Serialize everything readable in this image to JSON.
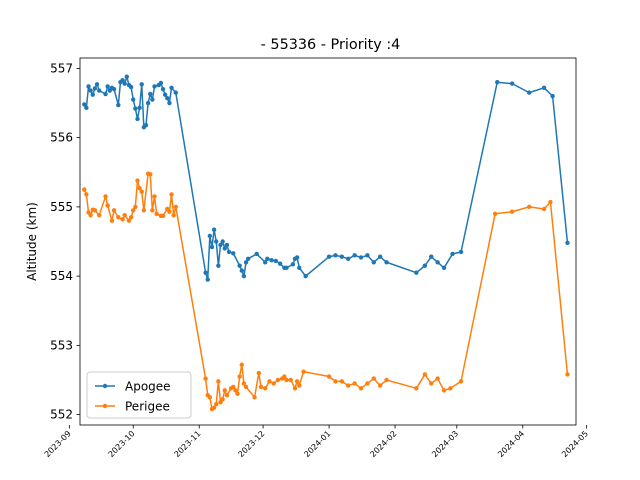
{
  "chart_data": {
    "type": "line",
    "title": "- 55336 - Priority :4",
    "xlabel": "",
    "ylabel": "Altitude (km)",
    "ylim": [
      551.85,
      557.15
    ],
    "xlim": [
      "2023-09-01",
      "2024-05-01"
    ],
    "grid": false,
    "legend_position": "lower-left",
    "x_ticks": [
      "2023-09",
      "2023-10",
      "2023-11",
      "2023-12",
      "2024-01",
      "2024-02",
      "2024-03",
      "2024-04",
      "2024-05"
    ],
    "y_ticks": [
      552,
      553,
      554,
      555,
      556,
      557
    ],
    "series": [
      {
        "name": "Apogee",
        "color": "#1f77b4",
        "points": [
          [
            "2023-09-08",
            556.48
          ],
          [
            "2023-09-09",
            556.43
          ],
          [
            "2023-09-10",
            556.74
          ],
          [
            "2023-09-11",
            556.68
          ],
          [
            "2023-09-12",
            556.62
          ],
          [
            "2023-09-13",
            556.71
          ],
          [
            "2023-09-14",
            556.77
          ],
          [
            "2023-09-15",
            556.68
          ],
          [
            "2023-09-18",
            556.63
          ],
          [
            "2023-09-19",
            556.74
          ],
          [
            "2023-09-20",
            556.68
          ],
          [
            "2023-09-21",
            556.72
          ],
          [
            "2023-09-22",
            556.7
          ],
          [
            "2023-09-24",
            556.47
          ],
          [
            "2023-09-25",
            556.8
          ],
          [
            "2023-09-26",
            556.83
          ],
          [
            "2023-09-27",
            556.78
          ],
          [
            "2023-09-28",
            556.88
          ],
          [
            "2023-09-29",
            556.76
          ],
          [
            "2023-09-30",
            556.73
          ],
          [
            "2023-10-01",
            556.55
          ],
          [
            "2023-10-02",
            556.42
          ],
          [
            "2023-10-03",
            556.27
          ],
          [
            "2023-10-04",
            556.43
          ],
          [
            "2023-10-05",
            556.77
          ],
          [
            "2023-10-06",
            556.15
          ],
          [
            "2023-10-07",
            556.18
          ],
          [
            "2023-10-08",
            556.5
          ],
          [
            "2023-10-09",
            556.63
          ],
          [
            "2023-10-10",
            556.55
          ],
          [
            "2023-10-11",
            556.74
          ],
          [
            "2023-10-13",
            556.76
          ],
          [
            "2023-10-14",
            556.79
          ],
          [
            "2023-10-15",
            556.7
          ],
          [
            "2023-10-16",
            556.62
          ],
          [
            "2023-10-17",
            556.57
          ],
          [
            "2023-10-18",
            556.5
          ],
          [
            "2023-10-19",
            556.72
          ],
          [
            "2023-10-21",
            556.65
          ],
          [
            "2023-11-04",
            554.05
          ],
          [
            "2023-11-05",
            553.95
          ],
          [
            "2023-11-06",
            554.58
          ],
          [
            "2023-11-07",
            554.42
          ],
          [
            "2023-11-08",
            554.67
          ],
          [
            "2023-11-09",
            554.5
          ],
          [
            "2023-11-10",
            554.15
          ],
          [
            "2023-11-11",
            554.45
          ],
          [
            "2023-11-12",
            554.5
          ],
          [
            "2023-11-13",
            554.4
          ],
          [
            "2023-11-14",
            554.45
          ],
          [
            "2023-11-15",
            554.35
          ],
          [
            "2023-11-17",
            554.33
          ],
          [
            "2023-11-20",
            554.15
          ],
          [
            "2023-11-21",
            554.08
          ],
          [
            "2023-11-22",
            554.0
          ],
          [
            "2023-11-23",
            554.2
          ],
          [
            "2023-11-24",
            554.25
          ],
          [
            "2023-11-28",
            554.32
          ],
          [
            "2023-12-02",
            554.2
          ],
          [
            "2023-12-03",
            554.25
          ],
          [
            "2023-12-05",
            554.23
          ],
          [
            "2023-12-07",
            554.22
          ],
          [
            "2023-12-09",
            554.18
          ],
          [
            "2023-12-11",
            554.12
          ],
          [
            "2023-12-12",
            554.12
          ],
          [
            "2023-12-15",
            554.17
          ],
          [
            "2023-12-16",
            554.25
          ],
          [
            "2023-12-17",
            554.27
          ],
          [
            "2023-12-18",
            554.12
          ],
          [
            "2023-12-21",
            554.0
          ],
          [
            "2024-01-01",
            554.28
          ],
          [
            "2024-01-04",
            554.3
          ],
          [
            "2024-01-07",
            554.28
          ],
          [
            "2024-01-10",
            554.25
          ],
          [
            "2024-01-13",
            554.3
          ],
          [
            "2024-01-16",
            554.27
          ],
          [
            "2024-01-19",
            554.3
          ],
          [
            "2024-01-22",
            554.2
          ],
          [
            "2024-01-25",
            554.28
          ],
          [
            "2024-01-28",
            554.2
          ],
          [
            "2024-02-11",
            554.05
          ],
          [
            "2024-02-15",
            554.15
          ],
          [
            "2024-02-18",
            554.28
          ],
          [
            "2024-02-21",
            554.2
          ],
          [
            "2024-02-24",
            554.12
          ],
          [
            "2024-02-28",
            554.32
          ],
          [
            "2024-03-03",
            554.35
          ],
          [
            "2024-03-20",
            556.8
          ],
          [
            "2024-03-27",
            556.78
          ],
          [
            "2024-04-04",
            556.65
          ],
          [
            "2024-04-11",
            556.72
          ],
          [
            "2024-04-15",
            556.6
          ],
          [
            "2024-04-22",
            554.48
          ]
        ]
      },
      {
        "name": "Perigee",
        "color": "#ff7f0e",
        "points": [
          [
            "2023-09-08",
            555.25
          ],
          [
            "2023-09-09",
            555.18
          ],
          [
            "2023-09-10",
            554.92
          ],
          [
            "2023-09-11",
            554.88
          ],
          [
            "2023-09-12",
            554.96
          ],
          [
            "2023-09-13",
            554.95
          ],
          [
            "2023-09-15",
            554.88
          ],
          [
            "2023-09-18",
            555.15
          ],
          [
            "2023-09-19",
            555.02
          ],
          [
            "2023-09-21",
            554.8
          ],
          [
            "2023-09-22",
            554.95
          ],
          [
            "2023-09-24",
            554.85
          ],
          [
            "2023-09-26",
            554.82
          ],
          [
            "2023-09-27",
            554.88
          ],
          [
            "2023-09-29",
            554.8
          ],
          [
            "2023-09-30",
            554.85
          ],
          [
            "2023-10-01",
            554.95
          ],
          [
            "2023-10-02",
            555.0
          ],
          [
            "2023-10-03",
            555.38
          ],
          [
            "2023-10-04",
            555.27
          ],
          [
            "2023-10-05",
            555.22
          ],
          [
            "2023-10-06",
            554.95
          ],
          [
            "2023-10-08",
            555.48
          ],
          [
            "2023-10-09",
            555.47
          ],
          [
            "2023-10-10",
            554.95
          ],
          [
            "2023-10-11",
            555.15
          ],
          [
            "2023-10-12",
            554.9
          ],
          [
            "2023-10-14",
            554.87
          ],
          [
            "2023-10-15",
            554.87
          ],
          [
            "2023-10-17",
            554.97
          ],
          [
            "2023-10-18",
            554.93
          ],
          [
            "2023-10-19",
            555.18
          ],
          [
            "2023-10-20",
            554.88
          ],
          [
            "2023-10-21",
            555.0
          ],
          [
            "2023-11-04",
            552.52
          ],
          [
            "2023-11-05",
            552.28
          ],
          [
            "2023-11-06",
            552.25
          ],
          [
            "2023-11-07",
            552.08
          ],
          [
            "2023-11-08",
            552.1
          ],
          [
            "2023-11-09",
            552.15
          ],
          [
            "2023-11-10",
            552.48
          ],
          [
            "2023-11-11",
            552.18
          ],
          [
            "2023-11-12",
            552.22
          ],
          [
            "2023-11-13",
            552.35
          ],
          [
            "2023-11-14",
            552.28
          ],
          [
            "2023-11-16",
            552.38
          ],
          [
            "2023-11-17",
            552.4
          ],
          [
            "2023-11-18",
            552.35
          ],
          [
            "2023-11-19",
            552.3
          ],
          [
            "2023-11-20",
            552.55
          ],
          [
            "2023-11-21",
            552.72
          ],
          [
            "2023-11-22",
            552.45
          ],
          [
            "2023-11-23",
            552.4
          ],
          [
            "2023-11-27",
            552.25
          ],
          [
            "2023-11-29",
            552.6
          ],
          [
            "2023-11-30",
            552.4
          ],
          [
            "2023-12-02",
            552.38
          ],
          [
            "2023-12-04",
            552.48
          ],
          [
            "2023-12-06",
            552.45
          ],
          [
            "2023-12-08",
            552.5
          ],
          [
            "2023-12-10",
            552.52
          ],
          [
            "2023-12-11",
            552.55
          ],
          [
            "2023-12-12",
            552.5
          ],
          [
            "2023-12-14",
            552.5
          ],
          [
            "2023-12-16",
            552.38
          ],
          [
            "2023-12-17",
            552.48
          ],
          [
            "2023-12-18",
            552.42
          ],
          [
            "2023-12-20",
            552.62
          ],
          [
            "2024-01-01",
            552.55
          ],
          [
            "2024-01-04",
            552.48
          ],
          [
            "2024-01-07",
            552.48
          ],
          [
            "2024-01-10",
            552.42
          ],
          [
            "2024-01-13",
            552.45
          ],
          [
            "2024-01-16",
            552.38
          ],
          [
            "2024-01-19",
            552.45
          ],
          [
            "2024-01-22",
            552.52
          ],
          [
            "2024-01-25",
            552.42
          ],
          [
            "2024-01-28",
            552.5
          ],
          [
            "2024-02-11",
            552.38
          ],
          [
            "2024-02-15",
            552.58
          ],
          [
            "2024-02-18",
            552.45
          ],
          [
            "2024-02-21",
            552.52
          ],
          [
            "2024-02-24",
            552.35
          ],
          [
            "2024-02-27",
            552.38
          ],
          [
            "2024-03-03",
            552.48
          ],
          [
            "2024-03-19",
            554.9
          ],
          [
            "2024-03-27",
            554.93
          ],
          [
            "2024-04-04",
            555.0
          ],
          [
            "2024-04-11",
            554.97
          ],
          [
            "2024-04-14",
            555.07
          ],
          [
            "2024-04-22",
            552.58
          ]
        ]
      }
    ]
  }
}
